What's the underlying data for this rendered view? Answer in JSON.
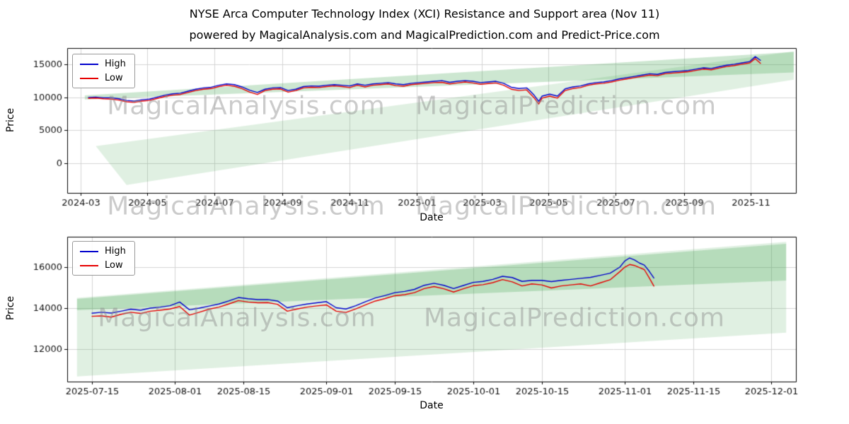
{
  "page": {
    "title": "NYSE Arca Computer Technology Index  (XCI) Resistance and Support area (Nov 11)",
    "subtitle": "powered by MagicalAnalysis.com and MagicalPrediction.com and Predict-Price.com"
  },
  "watermarks": {
    "left": "MagicalAnalysis.com",
    "right": "MagicalPrediction.com"
  },
  "colors": {
    "high": "#0000cc",
    "low": "#e60000",
    "band": "#3fa34d",
    "grid": "#d4d4d4",
    "spine": "#000000"
  },
  "chart_data": [
    {
      "type": "line",
      "name": "long-term-daily",
      "title": "",
      "xlabel": "Date",
      "ylabel": "Price",
      "legend_position": "upper-left",
      "grid": true,
      "xlim": [
        "2024-02-18",
        "2025-12-12"
      ],
      "ylim": [
        -4500,
        17500
      ],
      "yticks": [
        0,
        5000,
        10000,
        15000
      ],
      "xticks": [
        {
          "v": "2024-03-01",
          "label": "2024-03"
        },
        {
          "v": "2024-05-01",
          "label": "2024-05"
        },
        {
          "v": "2024-07-01",
          "label": "2024-07"
        },
        {
          "v": "2024-09-01",
          "label": "2024-09"
        },
        {
          "v": "2024-11-01",
          "label": "2024-11"
        },
        {
          "v": "2025-01-01",
          "label": "2025-01"
        },
        {
          "v": "2025-03-01",
          "label": "2025-03"
        },
        {
          "v": "2025-05-01",
          "label": "2025-05"
        },
        {
          "v": "2025-07-01",
          "label": "2025-07"
        },
        {
          "v": "2025-09-01",
          "label": "2025-09"
        },
        {
          "v": "2025-11-01",
          "label": "2025-11"
        }
      ],
      "series": [
        {
          "name": "High",
          "color_key": "high"
        },
        {
          "name": "Low",
          "color_key": "low"
        }
      ],
      "bands": [
        {
          "name": "support-area",
          "alpha": 0.16,
          "points": [
            [
              "2024-03-15",
              2600
            ],
            [
              "2025-12-10",
              17000
            ],
            [
              "2025-12-10",
              12700
            ],
            [
              "2024-04-12",
              -3300
            ]
          ]
        },
        {
          "name": "resistance-area",
          "alpha": 0.26,
          "points": [
            [
              "2024-03-05",
              10300
            ],
            [
              "2025-12-10",
              16900
            ],
            [
              "2025-12-10",
              13800
            ],
            [
              "2024-03-05",
              9700
            ]
          ]
        }
      ],
      "points": [
        [
          "2024-03-08",
          10000,
          9850
        ],
        [
          "2024-03-15",
          10050,
          9900
        ],
        [
          "2024-03-22",
          9950,
          9800
        ],
        [
          "2024-03-29",
          9950,
          9750
        ],
        [
          "2024-04-05",
          9800,
          9600
        ],
        [
          "2024-04-12",
          9550,
          9350
        ],
        [
          "2024-04-19",
          9450,
          9250
        ],
        [
          "2024-04-26",
          9650,
          9450
        ],
        [
          "2024-05-03",
          9750,
          9550
        ],
        [
          "2024-05-10",
          10050,
          9850
        ],
        [
          "2024-05-17",
          10350,
          10150
        ],
        [
          "2024-05-24",
          10550,
          10350
        ],
        [
          "2024-05-31",
          10650,
          10450
        ],
        [
          "2024-06-07",
          10950,
          10750
        ],
        [
          "2024-06-14",
          11250,
          11050
        ],
        [
          "2024-06-21",
          11450,
          11250
        ],
        [
          "2024-06-28",
          11550,
          11350
        ],
        [
          "2024-07-05",
          11850,
          11650
        ],
        [
          "2024-07-12",
          12050,
          11850
        ],
        [
          "2024-07-19",
          11950,
          11700
        ],
        [
          "2024-07-26",
          11600,
          11350
        ],
        [
          "2024-08-02",
          11100,
          10800
        ],
        [
          "2024-08-09",
          10750,
          10450
        ],
        [
          "2024-08-16",
          11250,
          11050
        ],
        [
          "2024-08-23",
          11450,
          11250
        ],
        [
          "2024-08-30",
          11500,
          11300
        ],
        [
          "2024-09-06",
          11050,
          10800
        ],
        [
          "2024-09-13",
          11250,
          11050
        ],
        [
          "2024-09-20",
          11650,
          11450
        ],
        [
          "2024-09-27",
          11750,
          11550
        ],
        [
          "2024-10-04",
          11700,
          11500
        ],
        [
          "2024-10-11",
          11850,
          11650
        ],
        [
          "2024-10-18",
          11950,
          11750
        ],
        [
          "2024-10-25",
          11850,
          11650
        ],
        [
          "2024-11-01",
          11750,
          11500
        ],
        [
          "2024-11-08",
          12050,
          11850
        ],
        [
          "2024-11-15",
          11850,
          11600
        ],
        [
          "2024-11-22",
          12050,
          11850
        ],
        [
          "2024-11-29",
          12150,
          11950
        ],
        [
          "2024-12-06",
          12250,
          12050
        ],
        [
          "2024-12-13",
          12050,
          11800
        ],
        [
          "2024-12-20",
          11950,
          11700
        ],
        [
          "2024-12-27",
          12150,
          11950
        ],
        [
          "2025-01-03",
          12250,
          12050
        ],
        [
          "2025-01-10",
          12350,
          12150
        ],
        [
          "2025-01-17",
          12450,
          12250
        ],
        [
          "2025-01-24",
          12550,
          12300
        ],
        [
          "2025-01-31",
          12300,
          12050
        ],
        [
          "2025-02-07",
          12450,
          12200
        ],
        [
          "2025-02-14",
          12550,
          12350
        ],
        [
          "2025-02-21",
          12450,
          12200
        ],
        [
          "2025-02-28",
          12250,
          12000
        ],
        [
          "2025-03-07",
          12350,
          12100
        ],
        [
          "2025-03-14",
          12450,
          12200
        ],
        [
          "2025-03-21",
          12150,
          11850
        ],
        [
          "2025-03-28",
          11550,
          11250
        ],
        [
          "2025-04-04",
          11350,
          11050
        ],
        [
          "2025-04-11",
          11450,
          11150
        ],
        [
          "2025-04-14",
          11000,
          10600
        ],
        [
          "2025-04-18",
          10300,
          9900
        ],
        [
          "2025-04-22",
          9400,
          9000
        ],
        [
          "2025-04-25",
          10200,
          9900
        ],
        [
          "2025-05-02",
          10500,
          10200
        ],
        [
          "2025-05-09",
          10200,
          9900
        ],
        [
          "2025-05-16",
          11300,
          11050
        ],
        [
          "2025-05-23",
          11600,
          11350
        ],
        [
          "2025-05-30",
          11750,
          11500
        ],
        [
          "2025-06-06",
          12050,
          11850
        ],
        [
          "2025-06-13",
          12250,
          12050
        ],
        [
          "2025-06-20",
          12350,
          12150
        ],
        [
          "2025-06-27",
          12550,
          12350
        ],
        [
          "2025-07-04",
          12800,
          12600
        ],
        [
          "2025-07-11",
          13000,
          12800
        ],
        [
          "2025-07-18",
          13200,
          13000
        ],
        [
          "2025-07-25",
          13400,
          13200
        ],
        [
          "2025-08-01",
          13600,
          13400
        ],
        [
          "2025-08-08",
          13500,
          13300
        ],
        [
          "2025-08-15",
          13800,
          13600
        ],
        [
          "2025-08-22",
          13900,
          13700
        ],
        [
          "2025-08-29",
          14000,
          13800
        ],
        [
          "2025-09-05",
          14100,
          13900
        ],
        [
          "2025-09-12",
          14300,
          14100
        ],
        [
          "2025-09-19",
          14500,
          14300
        ],
        [
          "2025-09-26",
          14400,
          14200
        ],
        [
          "2025-10-03",
          14650,
          14450
        ],
        [
          "2025-10-10",
          14900,
          14700
        ],
        [
          "2025-10-17",
          15050,
          14850
        ],
        [
          "2025-10-24",
          15250,
          15050
        ],
        [
          "2025-10-31",
          15450,
          15250
        ],
        [
          "2025-11-05",
          16200,
          15900
        ],
        [
          "2025-11-10",
          15600,
          15150
        ]
      ]
    },
    {
      "type": "line",
      "name": "short-term-daily",
      "title": "",
      "xlabel": "Date",
      "ylabel": "Price",
      "legend_position": "upper-left",
      "grid": true,
      "xlim": [
        "2025-07-10",
        "2025-12-06"
      ],
      "ylim": [
        10400,
        17500
      ],
      "yticks": [
        12000,
        14000,
        16000
      ],
      "xticks": [
        {
          "v": "2025-07-15",
          "label": "2025-07-15"
        },
        {
          "v": "2025-08-01",
          "label": "2025-08-01"
        },
        {
          "v": "2025-08-15",
          "label": "2025-08-15"
        },
        {
          "v": "2025-09-01",
          "label": "2025-09-01"
        },
        {
          "v": "2025-09-15",
          "label": "2025-09-15"
        },
        {
          "v": "2025-10-01",
          "label": "2025-10-01"
        },
        {
          "v": "2025-10-15",
          "label": "2025-10-15"
        },
        {
          "v": "2025-11-01",
          "label": "2025-11-01"
        },
        {
          "v": "2025-11-15",
          "label": "2025-11-15"
        },
        {
          "v": "2025-12-01",
          "label": "2025-12-01"
        }
      ],
      "series": [
        {
          "name": "High",
          "color_key": "high"
        },
        {
          "name": "Low",
          "color_key": "low"
        }
      ],
      "bands": [
        {
          "name": "support-area",
          "alpha": 0.16,
          "points": [
            [
              "2025-07-12",
              14500
            ],
            [
              "2025-12-04",
              17250
            ],
            [
              "2025-12-04",
              12800
            ],
            [
              "2025-07-12",
              10650
            ]
          ]
        },
        {
          "name": "resistance-area",
          "alpha": 0.26,
          "points": [
            [
              "2025-07-12",
              14450
            ],
            [
              "2025-12-04",
              17150
            ],
            [
              "2025-12-04",
              15350
            ],
            [
              "2025-07-12",
              13900
            ]
          ]
        }
      ],
      "points": [
        [
          "2025-07-15",
          13750,
          13600
        ],
        [
          "2025-07-17",
          13800,
          13620
        ],
        [
          "2025-07-19",
          13760,
          13560
        ],
        [
          "2025-07-21",
          13850,
          13700
        ],
        [
          "2025-07-23",
          13950,
          13800
        ],
        [
          "2025-07-25",
          13900,
          13740
        ],
        [
          "2025-07-27",
          14000,
          13850
        ],
        [
          "2025-07-29",
          14050,
          13900
        ],
        [
          "2025-07-31",
          14120,
          13960
        ],
        [
          "2025-08-02",
          14300,
          14080
        ],
        [
          "2025-08-04",
          13920,
          13660
        ],
        [
          "2025-08-06",
          14000,
          13800
        ],
        [
          "2025-08-08",
          14100,
          13950
        ],
        [
          "2025-08-10",
          14200,
          14050
        ],
        [
          "2025-08-12",
          14350,
          14200
        ],
        [
          "2025-08-14",
          14520,
          14370
        ],
        [
          "2025-08-16",
          14460,
          14300
        ],
        [
          "2025-08-18",
          14420,
          14260
        ],
        [
          "2025-08-20",
          14420,
          14270
        ],
        [
          "2025-08-22",
          14350,
          14190
        ],
        [
          "2025-08-24",
          14020,
          13850
        ],
        [
          "2025-08-26",
          14120,
          13960
        ],
        [
          "2025-08-28",
          14200,
          14050
        ],
        [
          "2025-08-30",
          14260,
          14110
        ],
        [
          "2025-09-01",
          14320,
          14160
        ],
        [
          "2025-09-03",
          14020,
          13850
        ],
        [
          "2025-09-05",
          13960,
          13790
        ],
        [
          "2025-09-07",
          14120,
          13960
        ],
        [
          "2025-09-09",
          14320,
          14160
        ],
        [
          "2025-09-11",
          14500,
          14350
        ],
        [
          "2025-09-13",
          14620,
          14470
        ],
        [
          "2025-09-15",
          14760,
          14610
        ],
        [
          "2025-09-17",
          14820,
          14660
        ],
        [
          "2025-09-19",
          14920,
          14760
        ],
        [
          "2025-09-21",
          15120,
          14960
        ],
        [
          "2025-09-23",
          15220,
          15060
        ],
        [
          "2025-09-25",
          15120,
          14950
        ],
        [
          "2025-09-27",
          14960,
          14790
        ],
        [
          "2025-09-29",
          15110,
          14950
        ],
        [
          "2025-10-01",
          15260,
          15100
        ],
        [
          "2025-10-03",
          15310,
          15150
        ],
        [
          "2025-10-05",
          15410,
          15250
        ],
        [
          "2025-10-07",
          15560,
          15400
        ],
        [
          "2025-10-09",
          15500,
          15290
        ],
        [
          "2025-10-11",
          15310,
          15090
        ],
        [
          "2025-10-13",
          15360,
          15190
        ],
        [
          "2025-10-15",
          15360,
          15140
        ],
        [
          "2025-10-17",
          15300,
          14990
        ],
        [
          "2025-10-19",
          15360,
          15090
        ],
        [
          "2025-10-21",
          15410,
          15140
        ],
        [
          "2025-10-23",
          15460,
          15190
        ],
        [
          "2025-10-25",
          15510,
          15090
        ],
        [
          "2025-10-27",
          15610,
          15240
        ],
        [
          "2025-10-29",
          15710,
          15390
        ],
        [
          "2025-10-31",
          16010,
          15790
        ],
        [
          "2025-11-01",
          16310,
          16010
        ],
        [
          "2025-11-02",
          16460,
          16140
        ],
        [
          "2025-11-03",
          16360,
          16090
        ],
        [
          "2025-11-04",
          16210,
          15990
        ],
        [
          "2025-11-05",
          16110,
          15890
        ],
        [
          "2025-11-06",
          15810,
          15490
        ],
        [
          "2025-11-07",
          15460,
          15060
        ]
      ]
    }
  ]
}
